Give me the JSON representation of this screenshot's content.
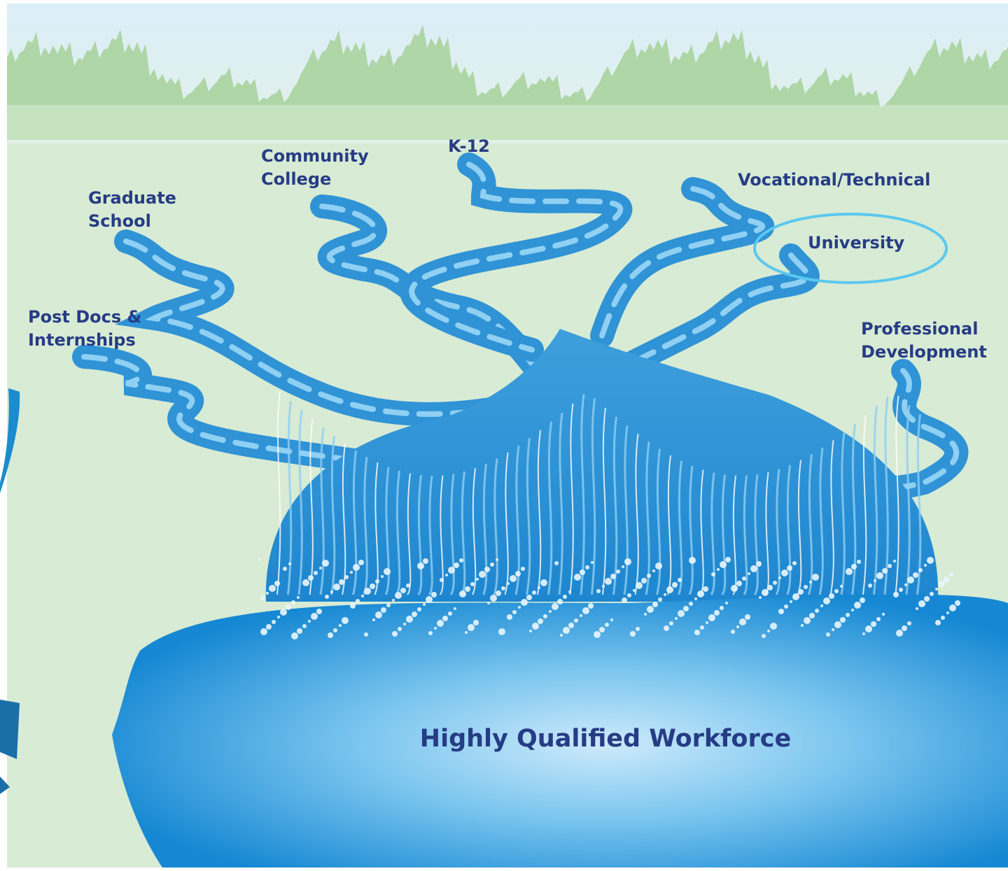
{
  "streams": [
    {
      "label": [
        "Post Docs &",
        "Internships"
      ]
    },
    {
      "label": [
        "Graduate",
        "School"
      ]
    },
    {
      "label": [
        "Community",
        "College"
      ]
    },
    {
      "label": [
        "K-12"
      ]
    },
    {
      "label": [
        "Vocational/Technical"
      ]
    },
    {
      "label": [
        "University"
      ]
    },
    {
      "label": [
        "Professional",
        "Development"
      ]
    }
  ],
  "outcome": {
    "label": "Highly Qualified Workforce"
  }
}
